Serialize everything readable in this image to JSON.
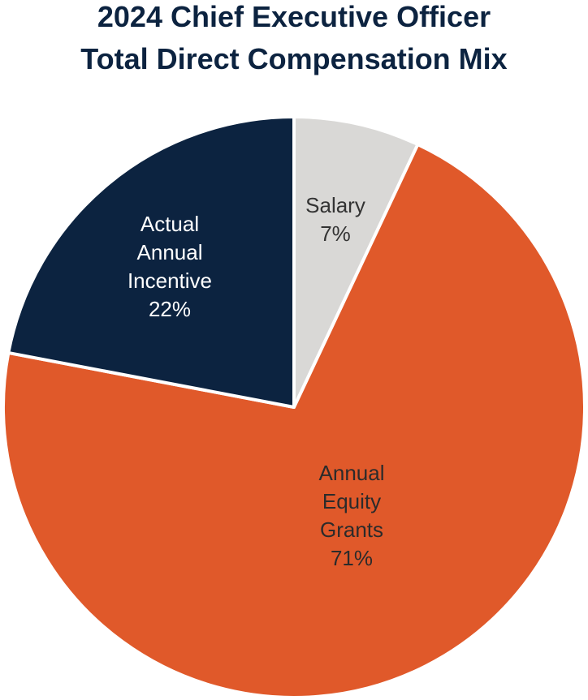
{
  "chart_data": {
    "type": "pie",
    "title": [
      "2024 Chief Executive Officer",
      "Total Direct Compensation Mix"
    ],
    "start_angle_deg": 0,
    "direction": "clockwise",
    "slices": [
      {
        "id": "salary",
        "label_lines": [
          "Salary"
        ],
        "value": 7,
        "value_label": "7%",
        "color": "#D9D8D6",
        "text_color": "#333333"
      },
      {
        "id": "equity",
        "label_lines": [
          "Annual",
          "Equity",
          "Grants"
        ],
        "value": 71,
        "value_label": "71%",
        "color": "#E0592A",
        "text_color": "#2B2B2B"
      },
      {
        "id": "incentive",
        "label_lines": [
          "Actual",
          "Annual",
          "Incentive"
        ],
        "value": 22,
        "value_label": "22%",
        "color": "#0C2340",
        "text_color": "#FFFFFF"
      }
    ],
    "colors": {
      "title": "#0C2340",
      "separator": "#FFFFFF"
    }
  }
}
